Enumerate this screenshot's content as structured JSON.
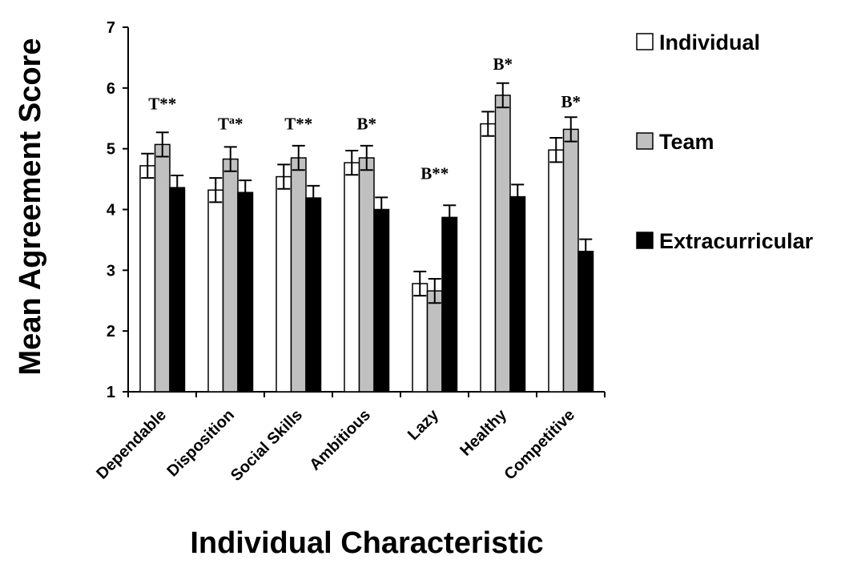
{
  "chart_data": {
    "type": "bar",
    "title": "",
    "xlabel": "Individual Characteristic",
    "ylabel": "Mean Agreement Score",
    "ylim": [
      1,
      7
    ],
    "yticks": [
      1,
      2,
      3,
      4,
      5,
      6,
      7
    ],
    "categories": [
      "Dependable",
      "Disposition",
      "Social Skills",
      "Ambitious",
      "Lazy",
      "Healthy",
      "Competitive"
    ],
    "series": [
      {
        "name": "Individual",
        "color": "#ffffff",
        "values": [
          4.72,
          4.32,
          4.54,
          4.77,
          2.78,
          5.41,
          4.98
        ],
        "errors": [
          0.2,
          0.2,
          0.2,
          0.2,
          0.2,
          0.2,
          0.2
        ]
      },
      {
        "name": "Team",
        "color": "#c0c0c0",
        "values": [
          5.07,
          4.83,
          4.85,
          4.85,
          2.66,
          5.88,
          5.32
        ],
        "errors": [
          0.2,
          0.2,
          0.2,
          0.2,
          0.2,
          0.2,
          0.2
        ]
      },
      {
        "name": "Extracurricular",
        "color": "#000000",
        "values": [
          4.36,
          4.28,
          4.19,
          4.0,
          3.87,
          4.21,
          3.31
        ],
        "errors": [
          0.2,
          0.2,
          0.2,
          0.2,
          0.2,
          0.2,
          0.2
        ]
      }
    ],
    "annotations": [
      {
        "base": "T",
        "sup": "",
        "suffix": "**",
        "y": 5.65
      },
      {
        "base": "T",
        "sup": "a",
        "suffix": "*",
        "y": 5.32
      },
      {
        "base": "T",
        "sup": "",
        "suffix": "**",
        "y": 5.32
      },
      {
        "base": "B",
        "sup": "",
        "suffix": "*",
        "y": 5.32
      },
      {
        "base": "B",
        "sup": "",
        "suffix": "**",
        "y": 4.5
      },
      {
        "base": "B",
        "sup": "",
        "suffix": "*",
        "y": 6.3
      },
      {
        "base": "B",
        "sup": "",
        "suffix": "*",
        "y": 5.68
      }
    ],
    "grid": false,
    "legend_position": "right"
  }
}
